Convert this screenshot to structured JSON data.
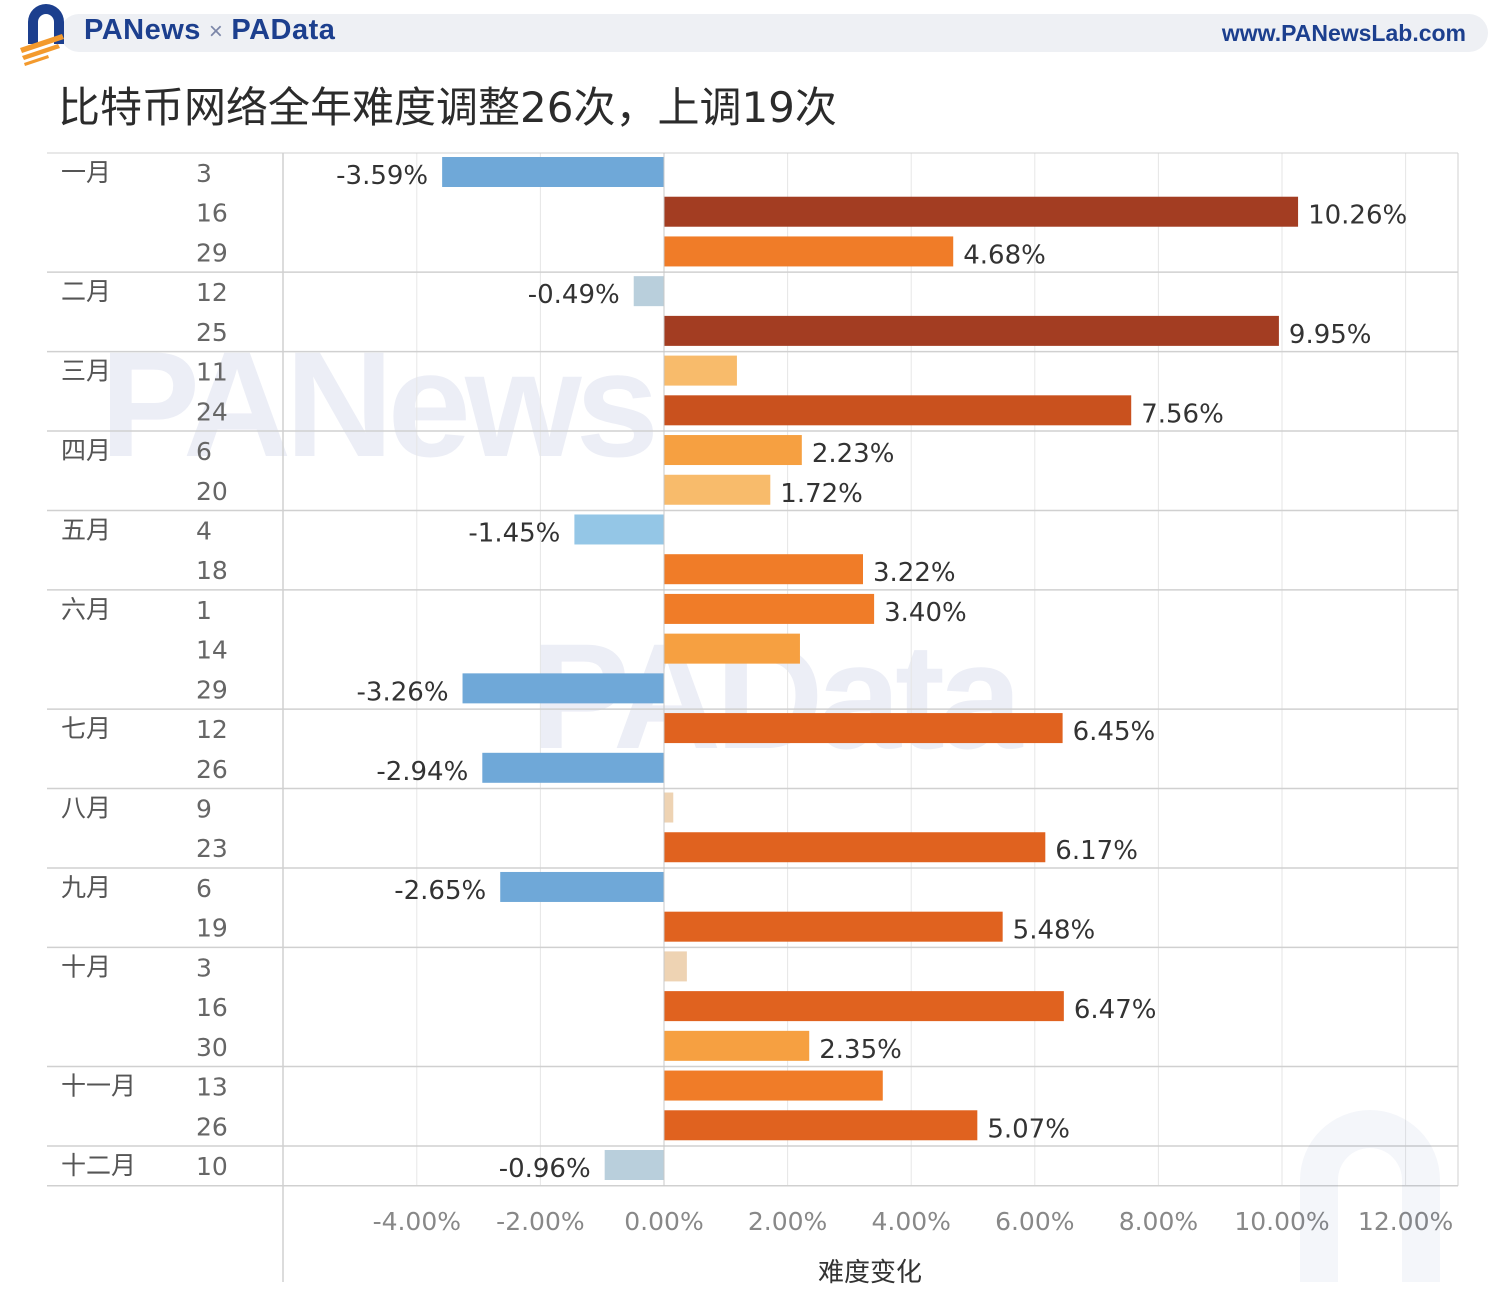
{
  "header": {
    "brand_left": "PANews",
    "brand_times": "×",
    "brand_right": "PAData",
    "site": "www.PANewsLab.com"
  },
  "title": "比特币网络全年难度调整26次，上调19次",
  "watermarks": [
    "PANews",
    "PAData"
  ],
  "chart_data": {
    "type": "bar",
    "orientation": "horizontal",
    "xlabel": "难度变化",
    "xlim": [
      -6.0,
      12.8
    ],
    "xticks": [
      -4.0,
      -2.0,
      0.0,
      2.0,
      4.0,
      6.0,
      8.0,
      10.0,
      12.0
    ],
    "xtick_labels": [
      "-4.00%",
      "-2.00%",
      "0.00%",
      "2.00%",
      "4.00%",
      "6.00%",
      "8.00%",
      "10.00%",
      "12.00%"
    ],
    "groups": [
      {
        "month": "一月",
        "rows": [
          {
            "day": "3",
            "value": -3.59,
            "label": "-3.59%"
          },
          {
            "day": "16",
            "value": 10.26,
            "label": "10.26%"
          },
          {
            "day": "29",
            "value": 4.68,
            "label": "4.68%"
          }
        ]
      },
      {
        "month": "二月",
        "rows": [
          {
            "day": "12",
            "value": -0.49,
            "label": "-0.49%"
          },
          {
            "day": "25",
            "value": 9.95,
            "label": "9.95%"
          }
        ]
      },
      {
        "month": "三月",
        "rows": [
          {
            "day": "11",
            "value": 1.18,
            "label": ""
          },
          {
            "day": "24",
            "value": 7.56,
            "label": "7.56%"
          }
        ]
      },
      {
        "month": "四月",
        "rows": [
          {
            "day": "6",
            "value": 2.23,
            "label": "2.23%"
          },
          {
            "day": "20",
            "value": 1.72,
            "label": "1.72%"
          }
        ]
      },
      {
        "month": "五月",
        "rows": [
          {
            "day": "4",
            "value": -1.45,
            "label": "-1.45%"
          },
          {
            "day": "18",
            "value": 3.22,
            "label": "3.22%"
          }
        ]
      },
      {
        "month": "六月",
        "rows": [
          {
            "day": "1",
            "value": 3.4,
            "label": "3.40%"
          },
          {
            "day": "14",
            "value": 2.2,
            "label": ""
          },
          {
            "day": "29",
            "value": -3.26,
            "label": "-3.26%"
          }
        ]
      },
      {
        "month": "七月",
        "rows": [
          {
            "day": "12",
            "value": 6.45,
            "label": "6.45%"
          },
          {
            "day": "26",
            "value": -2.94,
            "label": "-2.94%"
          }
        ]
      },
      {
        "month": "八月",
        "rows": [
          {
            "day": "9",
            "value": 0.15,
            "label": ""
          },
          {
            "day": "23",
            "value": 6.17,
            "label": "6.17%"
          }
        ]
      },
      {
        "month": "九月",
        "rows": [
          {
            "day": "6",
            "value": -2.65,
            "label": "-2.65%"
          },
          {
            "day": "19",
            "value": 5.48,
            "label": "5.48%"
          }
        ]
      },
      {
        "month": "十月",
        "rows": [
          {
            "day": "3",
            "value": 0.37,
            "label": ""
          },
          {
            "day": "16",
            "value": 6.47,
            "label": "6.47%"
          },
          {
            "day": "30",
            "value": 2.35,
            "label": "2.35%"
          }
        ]
      },
      {
        "month": "十一月",
        "rows": [
          {
            "day": "13",
            "value": 3.54,
            "label": ""
          },
          {
            "day": "26",
            "value": 5.07,
            "label": "5.07%"
          }
        ]
      },
      {
        "month": "十二月",
        "rows": [
          {
            "day": "10",
            "value": -0.96,
            "label": "-0.96%"
          }
        ]
      }
    ],
    "colors": {
      "neg_strong": "#6fa8d8",
      "neg_light": "#94c6e6",
      "neg_pale": "#b9cfdc",
      "pos_darkest": "#a33d22",
      "pos_dark": "#c9511e",
      "pos_mid": "#e0621f",
      "pos_orange": "#f07c28",
      "pos_light": "#f6a041",
      "pos_pale": "#f8bb6b",
      "pos_faint": "#eed3b3",
      "gridline": "#e6e6e6",
      "separator": "#d0d0d0"
    }
  }
}
